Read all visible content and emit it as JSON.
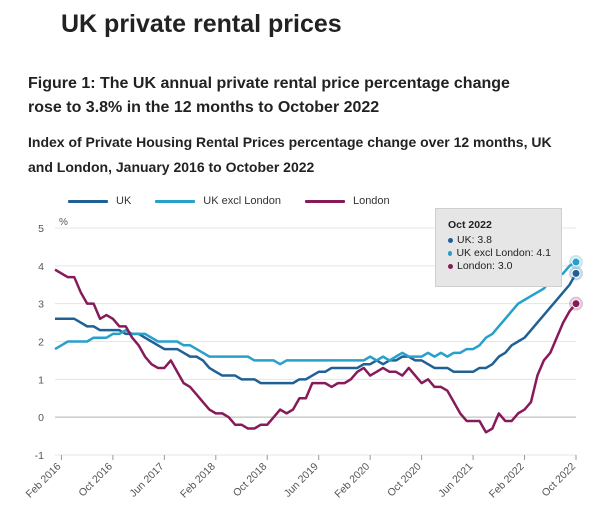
{
  "header": {
    "page_title": "UK private rental prices",
    "figure_title": "Figure 1: The UK annual private rental price percentage change rose to 3.8% in the 12 months to October 2022",
    "subtitle": "Index of Private Housing Rental Prices percentage change over 12 months, UK and London, January 2016 to October 2022"
  },
  "colors": {
    "uk": "#206095",
    "uk_excl_london": "#27a0cc",
    "london": "#871a5b"
  },
  "tooltip": {
    "title": "Oct 2022",
    "rows": [
      "UK: 3.8",
      "UK excl London: 4.1",
      "London: 3.0"
    ]
  },
  "chart_data": {
    "type": "line",
    "title": "Index of Private Housing Rental Prices percentage change over 12 months, UK and London, January 2016 to October 2022",
    "xlabel": "",
    "ylabel": "%",
    "ylim": [
      -1,
      5
    ],
    "yticks": [
      -1,
      0,
      1,
      2,
      3,
      4,
      5
    ],
    "x_start": "Jan 2016",
    "x_end": "Oct 2022",
    "x_ticks": [
      {
        "label": "Feb 2016",
        "index": 1
      },
      {
        "label": "Oct 2016",
        "index": 9
      },
      {
        "label": "Jun 2017",
        "index": 17
      },
      {
        "label": "Feb 2018",
        "index": 25
      },
      {
        "label": "Oct 2018",
        "index": 33
      },
      {
        "label": "Jun 2019",
        "index": 41
      },
      {
        "label": "Feb 2020",
        "index": 49
      },
      {
        "label": "Oct 2020",
        "index": 57
      },
      {
        "label": "Jun 2021",
        "index": 65
      },
      {
        "label": "Feb 2022",
        "index": 73
      },
      {
        "label": "Oct 2022",
        "index": 81
      }
    ],
    "legend": [
      "UK",
      "UK excl London",
      "London"
    ],
    "series": [
      {
        "name": "UK",
        "key": "uk",
        "values": [
          2.6,
          2.6,
          2.6,
          2.6,
          2.5,
          2.4,
          2.4,
          2.3,
          2.3,
          2.3,
          2.3,
          2.2,
          2.2,
          2.2,
          2.1,
          2.0,
          1.9,
          1.8,
          1.8,
          1.8,
          1.7,
          1.6,
          1.6,
          1.5,
          1.3,
          1.2,
          1.1,
          1.1,
          1.1,
          1.0,
          1.0,
          1.0,
          0.9,
          0.9,
          0.9,
          0.9,
          0.9,
          0.9,
          1.0,
          1.0,
          1.1,
          1.2,
          1.2,
          1.3,
          1.3,
          1.3,
          1.3,
          1.3,
          1.4,
          1.4,
          1.5,
          1.4,
          1.5,
          1.5,
          1.6,
          1.6,
          1.5,
          1.5,
          1.4,
          1.3,
          1.3,
          1.3,
          1.2,
          1.2,
          1.2,
          1.2,
          1.3,
          1.3,
          1.4,
          1.6,
          1.7,
          1.9,
          2.0,
          2.1,
          2.3,
          2.5,
          2.7,
          2.9,
          3.1,
          3.3,
          3.5,
          3.8
        ]
      },
      {
        "name": "UK excl London",
        "key": "uk_excl_london",
        "values": [
          1.8,
          1.9,
          2.0,
          2.0,
          2.0,
          2.0,
          2.1,
          2.1,
          2.1,
          2.2,
          2.2,
          2.3,
          2.2,
          2.2,
          2.2,
          2.1,
          2.0,
          2.0,
          2.0,
          2.0,
          1.9,
          1.9,
          1.8,
          1.7,
          1.6,
          1.6,
          1.6,
          1.6,
          1.6,
          1.6,
          1.6,
          1.5,
          1.5,
          1.5,
          1.5,
          1.4,
          1.5,
          1.5,
          1.5,
          1.5,
          1.5,
          1.5,
          1.5,
          1.5,
          1.5,
          1.5,
          1.5,
          1.5,
          1.5,
          1.6,
          1.5,
          1.6,
          1.5,
          1.6,
          1.7,
          1.6,
          1.6,
          1.6,
          1.7,
          1.6,
          1.7,
          1.6,
          1.7,
          1.7,
          1.8,
          1.8,
          1.9,
          2.1,
          2.2,
          2.4,
          2.6,
          2.8,
          3.0,
          3.1,
          3.2,
          3.3,
          3.4,
          3.6,
          3.7,
          3.8,
          4.0,
          4.1
        ]
      },
      {
        "name": "London",
        "key": "london",
        "values": [
          3.9,
          3.8,
          3.7,
          3.7,
          3.3,
          3.0,
          3.0,
          2.6,
          2.7,
          2.6,
          2.4,
          2.4,
          2.1,
          1.9,
          1.6,
          1.4,
          1.3,
          1.3,
          1.5,
          1.2,
          0.9,
          0.8,
          0.6,
          0.4,
          0.2,
          0.1,
          0.1,
          0.0,
          -0.2,
          -0.2,
          -0.3,
          -0.3,
          -0.2,
          -0.2,
          0.0,
          0.2,
          0.1,
          0.2,
          0.5,
          0.5,
          0.9,
          0.9,
          0.9,
          0.8,
          0.9,
          0.9,
          1.0,
          1.2,
          1.3,
          1.1,
          1.2,
          1.3,
          1.2,
          1.2,
          1.1,
          1.3,
          1.1,
          0.9,
          1.0,
          0.8,
          0.8,
          0.7,
          0.4,
          0.1,
          -0.1,
          -0.1,
          -0.1,
          -0.4,
          -0.3,
          0.1,
          -0.1,
          -0.1,
          0.1,
          0.2,
          0.4,
          1.1,
          1.5,
          1.7,
          2.1,
          2.5,
          2.8,
          3.0
        ]
      }
    ]
  }
}
